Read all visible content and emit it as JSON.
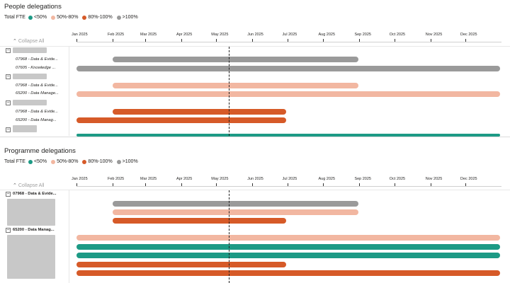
{
  "colors": {
    "lt50": "#1d9a85",
    "r50_80": "#f2b7a1",
    "r80_100": "#d65a28",
    "gt100": "#9a9a9a"
  },
  "months": [
    "Jan 2025",
    "Feb 2025",
    "Mar 2025",
    "Apr 2025",
    "May 2025",
    "Jun 2025",
    "Jul 2025",
    "Aug 2025",
    "Sep 2025",
    "Oct 2025",
    "Nov 2025",
    "Dec 2025"
  ],
  "legend": {
    "title": "Total FTE",
    "items": [
      {
        "label": "<50%",
        "color": "#1d9a85"
      },
      {
        "label": "50%-80%",
        "color": "#f2b7a1"
      },
      {
        "label": "80%-100%",
        "color": "#d65a28"
      },
      {
        "label": ">100%",
        "color": "#9a9a9a"
      }
    ]
  },
  "people": {
    "title": "People delegations",
    "collapse_label": "Collapse All",
    "rows": [
      {
        "label": "07968 - Data & Evide...",
        "bar": {
          "start": "2025-02-01",
          "end": "2025-08-31",
          "color": "#9a9a9a"
        }
      },
      {
        "label": "07605 - Knowledge ...",
        "bar": {
          "start": "2025-01-01",
          "end": "2025-12-31",
          "color": "#9a9a9a"
        }
      },
      {
        "label": "07968 - Data & Evide...",
        "bar": {
          "start": "2025-02-01",
          "end": "2025-08-31",
          "color": "#f2b7a1"
        }
      },
      {
        "label": "65200 - Data Manage...",
        "bar": {
          "start": "2025-01-01",
          "end": "2025-12-31",
          "color": "#f2b7a1"
        }
      },
      {
        "label": "07968 - Data & Evide...",
        "bar": {
          "start": "2025-02-01",
          "end": "2025-06-30",
          "color": "#d65a28"
        }
      },
      {
        "label": "65200 - Data Manag...",
        "bar": {
          "start": "2025-01-01",
          "end": "2025-06-30",
          "color": "#d65a28"
        }
      },
      {
        "label": "",
        "bar": {
          "start": "2025-01-01",
          "end": "2025-12-31",
          "color": "#1d9a85"
        }
      }
    ]
  },
  "programme": {
    "title": "Programme delegations",
    "collapse_label": "Collapse All",
    "groups": [
      {
        "label": "07968 - Data & Evide..."
      },
      {
        "label": "65200 - Data Manag..."
      }
    ],
    "rows": [
      {
        "bar": {
          "start": "2025-02-01",
          "end": "2025-08-31",
          "color": "#9a9a9a"
        }
      },
      {
        "bar": {
          "start": "2025-02-01",
          "end": "2025-08-31",
          "color": "#f2b7a1"
        }
      },
      {
        "bar": {
          "start": "2025-02-01",
          "end": "2025-06-30",
          "color": "#d65a28"
        }
      },
      {
        "bar": {
          "start": "2025-01-01",
          "end": "2025-12-31",
          "color": "#f2b7a1"
        }
      },
      {
        "bar": {
          "start": "2025-01-01",
          "end": "2025-12-31",
          "color": "#1d9a85"
        }
      },
      {
        "bar": {
          "start": "2025-01-01",
          "end": "2025-12-31",
          "color": "#1d9a85"
        }
      },
      {
        "bar": {
          "start": "2025-01-01",
          "end": "2025-06-30",
          "color": "#d65a28"
        }
      },
      {
        "bar": {
          "start": "2025-01-01",
          "end": "2025-12-31",
          "color": "#d65a28"
        }
      }
    ]
  },
  "today": "2025-05-12"
}
